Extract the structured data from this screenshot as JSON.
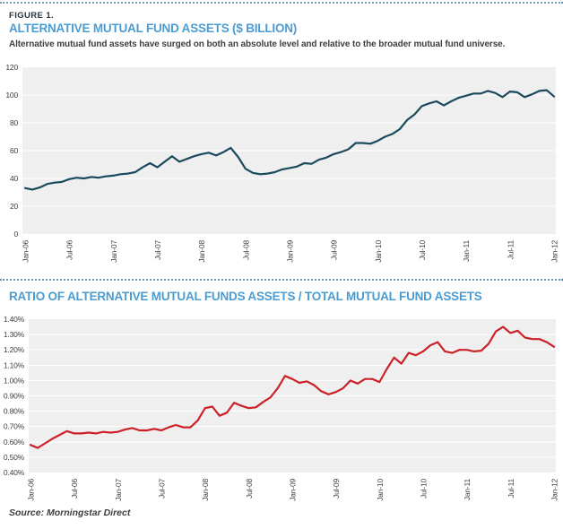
{
  "figure": {
    "label": "FIGURE 1.",
    "source": "Source: Morningstar Direct"
  },
  "colors": {
    "accent_blue": "#4c9cd1",
    "assets_line": "#1b4a5c",
    "ratio_line": "#cb2128",
    "plot_background": "#efeff0",
    "gridline": "#ffffff",
    "tick_text": "#3d3d3d",
    "dotted_rule": "#7d9cb2"
  },
  "chart_data": [
    {
      "type": "line",
      "title": "ALTERNATIVE MUTUAL FUND ASSETS ($ BILLION)",
      "subtitle": "Alternative mutual fund assets have surged on both an absolute level and relative to the broader mutual fund universe.",
      "legend_position": "none",
      "grid": true,
      "ylim": [
        0,
        120
      ],
      "y_tick_labels": [
        "120",
        "100",
        "80",
        "60",
        "40",
        "20",
        "0"
      ],
      "x_tick_labels": [
        "Jan-06",
        "Jul-06",
        "Jan-07",
        "Jul-07",
        "Jan-08",
        "Jul-08",
        "Jan-09",
        "Jul-09",
        "Jan-10",
        "Jul-10",
        "Jan-11",
        "Jul-11",
        "Jan-12"
      ],
      "x_frequency": "monthly",
      "series": [
        {
          "name": "Alternative mutual fund assets ($B)",
          "color": "#1b4a5c",
          "values": [
            33,
            32,
            33.5,
            36,
            37,
            37.5,
            39.5,
            40.5,
            40,
            41,
            40.5,
            41.5,
            42,
            43,
            43.5,
            44.5,
            48,
            51,
            48,
            52,
            56,
            52,
            54,
            56,
            57.5,
            58.5,
            56.5,
            59,
            62,
            55.5,
            47,
            44,
            43,
            43.5,
            44.5,
            46.5,
            47.5,
            48.5,
            51,
            50.5,
            53.5,
            55,
            57.5,
            59,
            61,
            65.5,
            65.5,
            65,
            67,
            70,
            72,
            75.5,
            82,
            86,
            92,
            94,
            95.5,
            92.5,
            95.5,
            98,
            99.5,
            101,
            101,
            103,
            101.5,
            98.5,
            102.5,
            102,
            98.5,
            100.5,
            103,
            103.5,
            99
          ]
        }
      ]
    },
    {
      "type": "line",
      "title": "RATIO OF ALTERNATIVE MUTUAL FUNDS ASSETS / TOTAL MUTUAL FUND ASSETS",
      "subtitle": "",
      "legend_position": "none",
      "grid": true,
      "ylim": [
        0.4,
        1.4
      ],
      "y_tick_labels": [
        "1.40%",
        "1.30%",
        "1.20%",
        "1.10%",
        "1.00%",
        "0.90%",
        "0.80%",
        "0.70%",
        "0.60%",
        "0.50%",
        "0.40%"
      ],
      "x_tick_labels": [
        "Jan-06",
        "Jul-06",
        "Jan-07",
        "Jul-07",
        "Jan-08",
        "Jul-08",
        "Jan-09",
        "Jul-09",
        "Jan-10",
        "Jul-10",
        "Jan-11",
        "Jul-11",
        "Jan-12"
      ],
      "x_frequency": "monthly",
      "series": [
        {
          "name": "Alt funds / total funds (%)",
          "color": "#cb2128",
          "values": [
            0.58,
            0.56,
            0.59,
            0.62,
            0.645,
            0.67,
            0.655,
            0.655,
            0.66,
            0.655,
            0.665,
            0.66,
            0.665,
            0.68,
            0.69,
            0.675,
            0.675,
            0.685,
            0.675,
            0.695,
            0.71,
            0.695,
            0.695,
            0.74,
            0.82,
            0.83,
            0.77,
            0.79,
            0.855,
            0.835,
            0.82,
            0.825,
            0.86,
            0.89,
            0.95,
            1.03,
            1.01,
            0.985,
            0.995,
            0.97,
            0.93,
            0.91,
            0.925,
            0.95,
            1.0,
            0.98,
            1.01,
            1.01,
            0.99,
            1.075,
            1.15,
            1.11,
            1.18,
            1.165,
            1.19,
            1.23,
            1.25,
            1.19,
            1.18,
            1.2,
            1.2,
            1.19,
            1.195,
            1.24,
            1.32,
            1.35,
            1.31,
            1.325,
            1.28,
            1.27,
            1.27,
            1.25,
            1.22
          ]
        }
      ]
    }
  ]
}
